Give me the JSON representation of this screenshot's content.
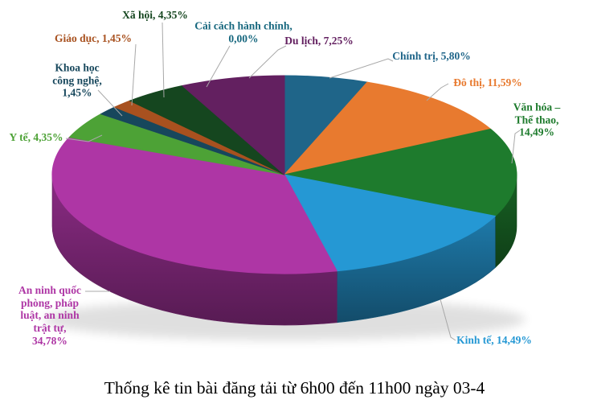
{
  "title": "Thống kê tin bài đăng tải từ 6h00 đến 11h00 ngày 03-4",
  "chart_data": {
    "type": "pie",
    "projection": "3d",
    "start_angle_deg": 0,
    "direction": "clockwise",
    "legend": "none",
    "value_suffix": "%",
    "title": "Thống kê tin bài đăng tải từ 6h00 đến 11h00 ngày 03-4",
    "slices": [
      {
        "id": "chinh-tri",
        "label": "Chính trị",
        "value": 5.8,
        "display": "5,80%",
        "color": "#1F6589"
      },
      {
        "id": "do-thi",
        "label": "Đô thị",
        "value": 11.59,
        "display": "11,59%",
        "color": "#E87A2F"
      },
      {
        "id": "van-hoa",
        "label": "Văn hóa – Thể thao",
        "value": 14.49,
        "display": "14,49%",
        "color": "#1E7B2D"
      },
      {
        "id": "kinh-te",
        "label": "Kinh tế",
        "value": 14.49,
        "display": "14,49%",
        "color": "#2598D4"
      },
      {
        "id": "an-ninh",
        "label": "An ninh quốc phòng, pháp luật, an ninh trật tự",
        "value": 34.78,
        "display": "34,78%",
        "color": "#AE36A5"
      },
      {
        "id": "y-te",
        "label": "Y tế",
        "value": 4.35,
        "display": "4,35%",
        "color": "#4DA236"
      },
      {
        "id": "khcn",
        "label": "Khoa học công nghệ",
        "value": 1.45,
        "display": "1,45%",
        "color": "#17475C"
      },
      {
        "id": "giao-duc",
        "label": "Giáo dục",
        "value": 1.45,
        "display": "1,45%",
        "color": "#A8511F"
      },
      {
        "id": "xa-hoi",
        "label": "Xã hội",
        "value": 4.35,
        "display": "4,35%",
        "color": "#15461F"
      },
      {
        "id": "cai-cach",
        "label": "Cải cách hành chính",
        "value": 0.0,
        "display": "0,00%",
        "color": "#16677E"
      },
      {
        "id": "du-lich",
        "label": "Du lịch",
        "value": 7.25,
        "display": "7,25%",
        "color": "#632060"
      }
    ]
  },
  "callouts": {
    "xa-hoi": {
      "text": "Xã hội, 4,35%"
    },
    "cai-cach": {
      "text": "Cải cách hành chính,\n0,00%"
    },
    "du-lich": {
      "text": "Du lịch, 7,25%"
    },
    "chinh-tri": {
      "text": "Chính trị, 5,80%"
    },
    "do-thi": {
      "text": "Đô thị, 11,59%"
    },
    "van-hoa": {
      "text": "Văn hóa – Thể thao,\n14,49%"
    },
    "kinh-te": {
      "text": "Kinh tế, 14,49%"
    },
    "an-ninh": {
      "text": "An ninh quốc\nphòng, pháp\nluật, an ninh\ntrật tự,\n34,78%"
    },
    "y-te": {
      "text": "Y tế, 4,35%"
    },
    "khcn": {
      "text": "Khoa học\ncông nghệ,\n1,45%"
    },
    "giao-duc": {
      "text": "Giáo dục, 1,45%"
    }
  },
  "leader_line_color": "#A8A8A8"
}
